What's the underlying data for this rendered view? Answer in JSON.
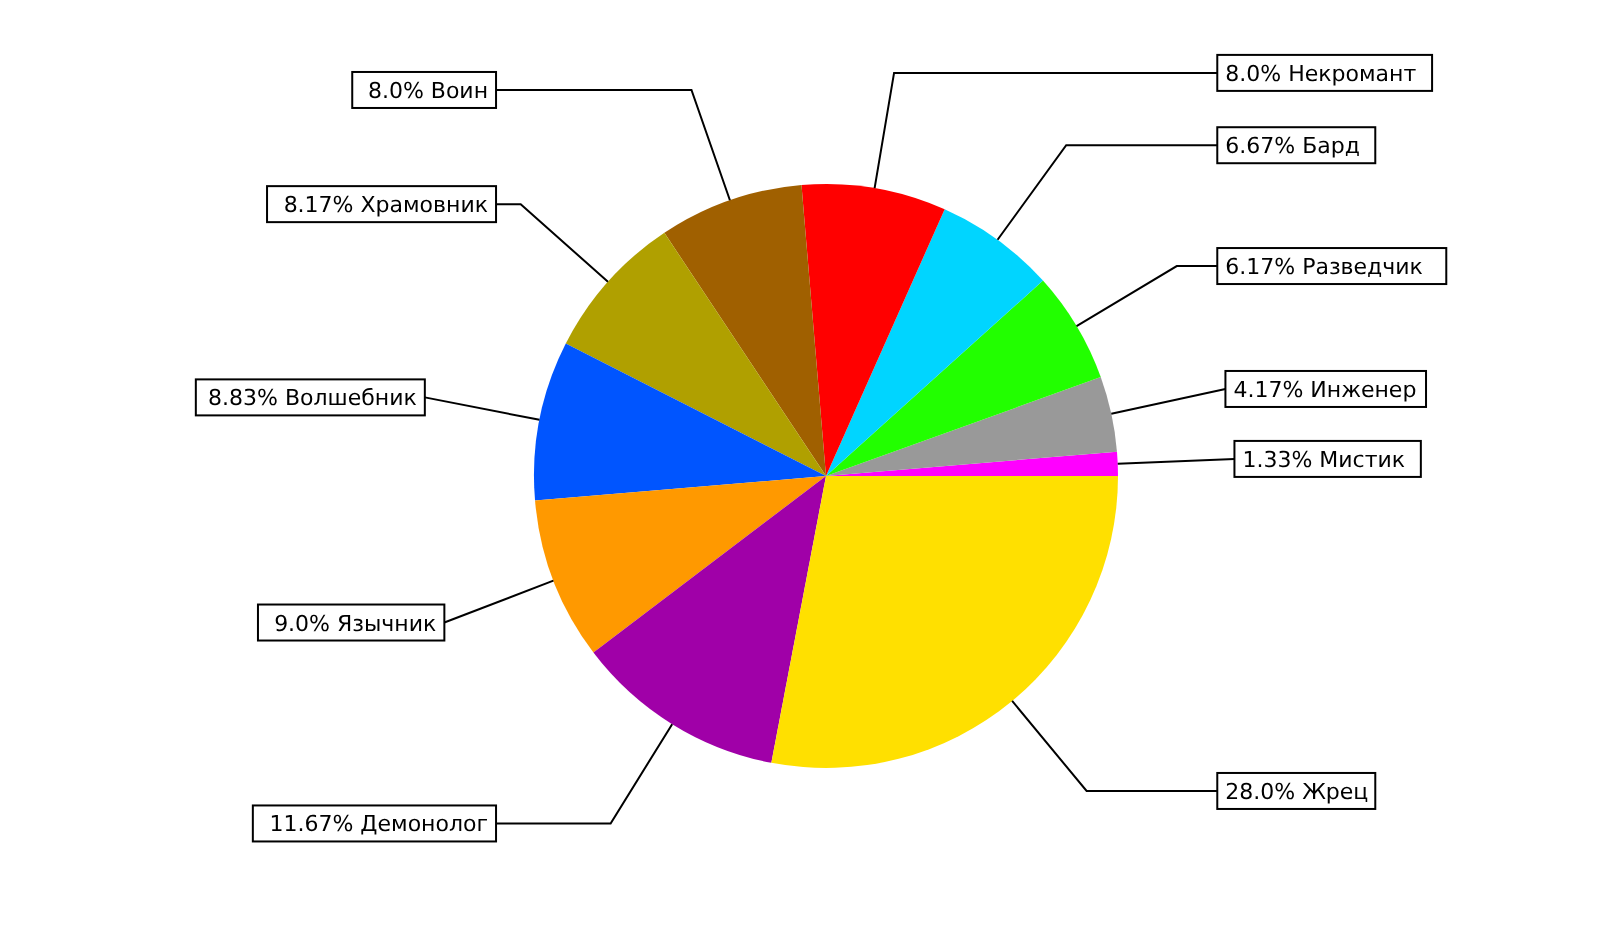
{
  "chart_data": {
    "type": "pie",
    "categories": [
      "Мистик",
      "Инженер",
      "Разведчик",
      "Бард",
      "Некромант",
      "Воин",
      "Храмовник",
      "Волшебник",
      "Язычник",
      "Демонолог",
      "Жрец"
    ],
    "values": [
      1.33,
      4.17,
      6.17,
      6.67,
      8.0,
      8.0,
      8.17,
      8.83,
      9.0,
      11.67,
      28.0
    ],
    "value_labels": [
      "1.33%",
      "4.17%",
      "6.17%",
      "6.67%",
      "8.0%",
      "8.0%",
      "8.17%",
      "8.83%",
      "9.0%",
      "11.67%",
      "28.0%"
    ],
    "colors": [
      "#ff00ff",
      "#999999",
      "#22ff00",
      "#00d5ff",
      "#ff0000",
      "#a06000",
      "#b0a000",
      "#0055ff",
      "#ff9900",
      "#a000a8",
      "#ffe000"
    ]
  }
}
